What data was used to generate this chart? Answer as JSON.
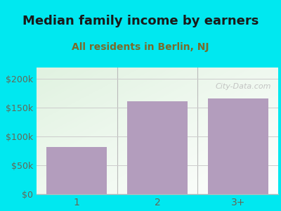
{
  "title": "Median family income by earners",
  "subtitle": "All residents in Berlin, NJ",
  "categories": [
    "1",
    "2",
    "3+"
  ],
  "values": [
    82000,
    161000,
    166000
  ],
  "bar_color": "#b39dbd",
  "title_fontsize": 13,
  "subtitle_fontsize": 10,
  "subtitle_color": "#7a6a2a",
  "title_color": "#1a1a1a",
  "background_color": "#00e8f0",
  "ylim": [
    0,
    220000
  ],
  "yticks": [
    0,
    50000,
    100000,
    150000,
    200000
  ],
  "ytick_labels": [
    "$0",
    "$50k",
    "$100k",
    "$150k",
    "$200k"
  ],
  "tick_color": "#666655",
  "watermark": "City-Data.com",
  "watermark_color": "#bbbbbb",
  "grid_color": "#cccccc",
  "divider_color": "#bbbbbb"
}
